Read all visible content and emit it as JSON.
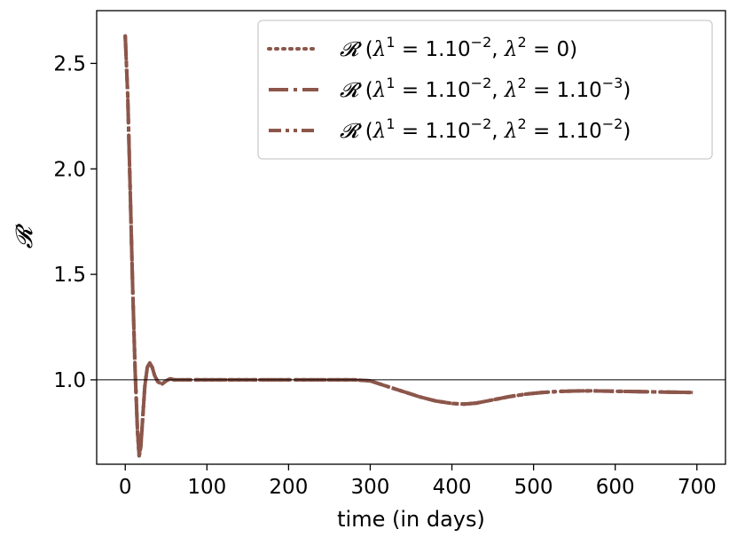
{
  "chart_data": {
    "type": "line",
    "xlabel": "time (in days)",
    "ylabel": "𝓡",
    "xlim": [
      -35,
      735
    ],
    "ylim": [
      0.6,
      2.75
    ],
    "xticks": [
      0,
      100,
      200,
      300,
      400,
      500,
      600,
      700
    ],
    "yticks": [
      1.0,
      1.5,
      2.0,
      2.5
    ],
    "xtick_labels": [
      "0",
      "100",
      "200",
      "300",
      "400",
      "500",
      "600",
      "700"
    ],
    "ytick_labels": [
      "1.0",
      "1.5",
      "2.0",
      "2.5"
    ],
    "reference_line": {
      "y": 1.0,
      "color": "#000000"
    },
    "grid": false,
    "legend_position": "top-right",
    "color": "#8c564b",
    "series": [
      {
        "name": "𝓡 (λ¹ = 1.10⁻², λ² = 0)",
        "legend": {
          "sym": "𝓡",
          "l1": "1.10",
          "e1": "−2",
          "l2": "0",
          "e2": ""
        },
        "style": "dotted",
        "x": [
          0,
          3,
          6,
          9,
          12,
          15,
          17,
          19,
          21,
          24,
          27,
          30,
          33,
          36,
          40,
          45,
          50,
          55,
          60,
          70,
          100,
          150,
          200,
          250,
          280,
          300,
          320,
          340,
          360,
          380,
          400,
          415,
          430,
          450,
          470,
          490,
          510,
          530,
          550,
          570,
          600,
          630,
          660,
          695
        ],
        "values": [
          2.63,
          2.35,
          1.9,
          1.45,
          1.05,
          0.76,
          0.64,
          0.68,
          0.8,
          0.97,
          1.06,
          1.08,
          1.06,
          1.02,
          0.99,
          0.98,
          0.995,
          1.005,
          1.0,
          1.0,
          1.0,
          1.0,
          1.0,
          1.0,
          1.0,
          0.995,
          0.97,
          0.945,
          0.92,
          0.9,
          0.888,
          0.885,
          0.89,
          0.905,
          0.92,
          0.932,
          0.94,
          0.945,
          0.947,
          0.948,
          0.946,
          0.944,
          0.942,
          0.94
        ]
      },
      {
        "name": "𝓡 (λ¹ = 1.10⁻², λ² = 1.10⁻³)",
        "legend": {
          "sym": "𝓡",
          "l1": "1.10",
          "e1": "−2",
          "l2": "1.10",
          "e2": "−3"
        },
        "style": "dashdot",
        "x": [
          0,
          3,
          6,
          9,
          12,
          15,
          17,
          19,
          21,
          24,
          27,
          30,
          33,
          36,
          40,
          45,
          50,
          55,
          60,
          70,
          100,
          150,
          200,
          250,
          280,
          300,
          320,
          340,
          360,
          380,
          400,
          415,
          430,
          450,
          470,
          490,
          510,
          530,
          550,
          570,
          600,
          630,
          660,
          695
        ],
        "values": [
          2.63,
          2.35,
          1.9,
          1.45,
          1.05,
          0.76,
          0.64,
          0.68,
          0.8,
          0.97,
          1.06,
          1.08,
          1.06,
          1.02,
          0.99,
          0.98,
          0.995,
          1.005,
          1.0,
          1.0,
          1.0,
          1.0,
          1.0,
          1.0,
          1.0,
          0.995,
          0.97,
          0.945,
          0.92,
          0.9,
          0.888,
          0.885,
          0.89,
          0.905,
          0.92,
          0.932,
          0.94,
          0.945,
          0.947,
          0.948,
          0.946,
          0.944,
          0.942,
          0.94
        ]
      },
      {
        "name": "𝓡 (λ¹ = 1.10⁻², λ² = 1.10⁻²)",
        "legend": {
          "sym": "𝓡",
          "l1": "1.10",
          "e1": "−2",
          "l2": "1.10",
          "e2": "−2"
        },
        "style": "dashdotdot",
        "x": [
          0,
          3,
          6,
          9,
          12,
          15,
          17,
          19,
          21,
          24,
          27,
          30,
          33,
          36,
          40,
          45,
          50,
          55,
          60,
          70,
          100,
          150,
          200,
          250,
          280,
          300,
          320,
          340,
          360,
          380,
          400,
          415,
          430,
          450,
          470,
          490,
          510,
          530,
          550,
          570,
          600,
          630,
          660,
          695
        ],
        "values": [
          2.63,
          2.35,
          1.9,
          1.45,
          1.05,
          0.76,
          0.64,
          0.68,
          0.8,
          0.97,
          1.06,
          1.08,
          1.06,
          1.02,
          0.99,
          0.98,
          0.995,
          1.005,
          1.0,
          1.0,
          1.0,
          1.0,
          1.0,
          1.0,
          1.0,
          0.995,
          0.97,
          0.945,
          0.92,
          0.9,
          0.888,
          0.885,
          0.89,
          0.905,
          0.92,
          0.932,
          0.94,
          0.945,
          0.947,
          0.948,
          0.946,
          0.944,
          0.942,
          0.94
        ]
      }
    ]
  }
}
